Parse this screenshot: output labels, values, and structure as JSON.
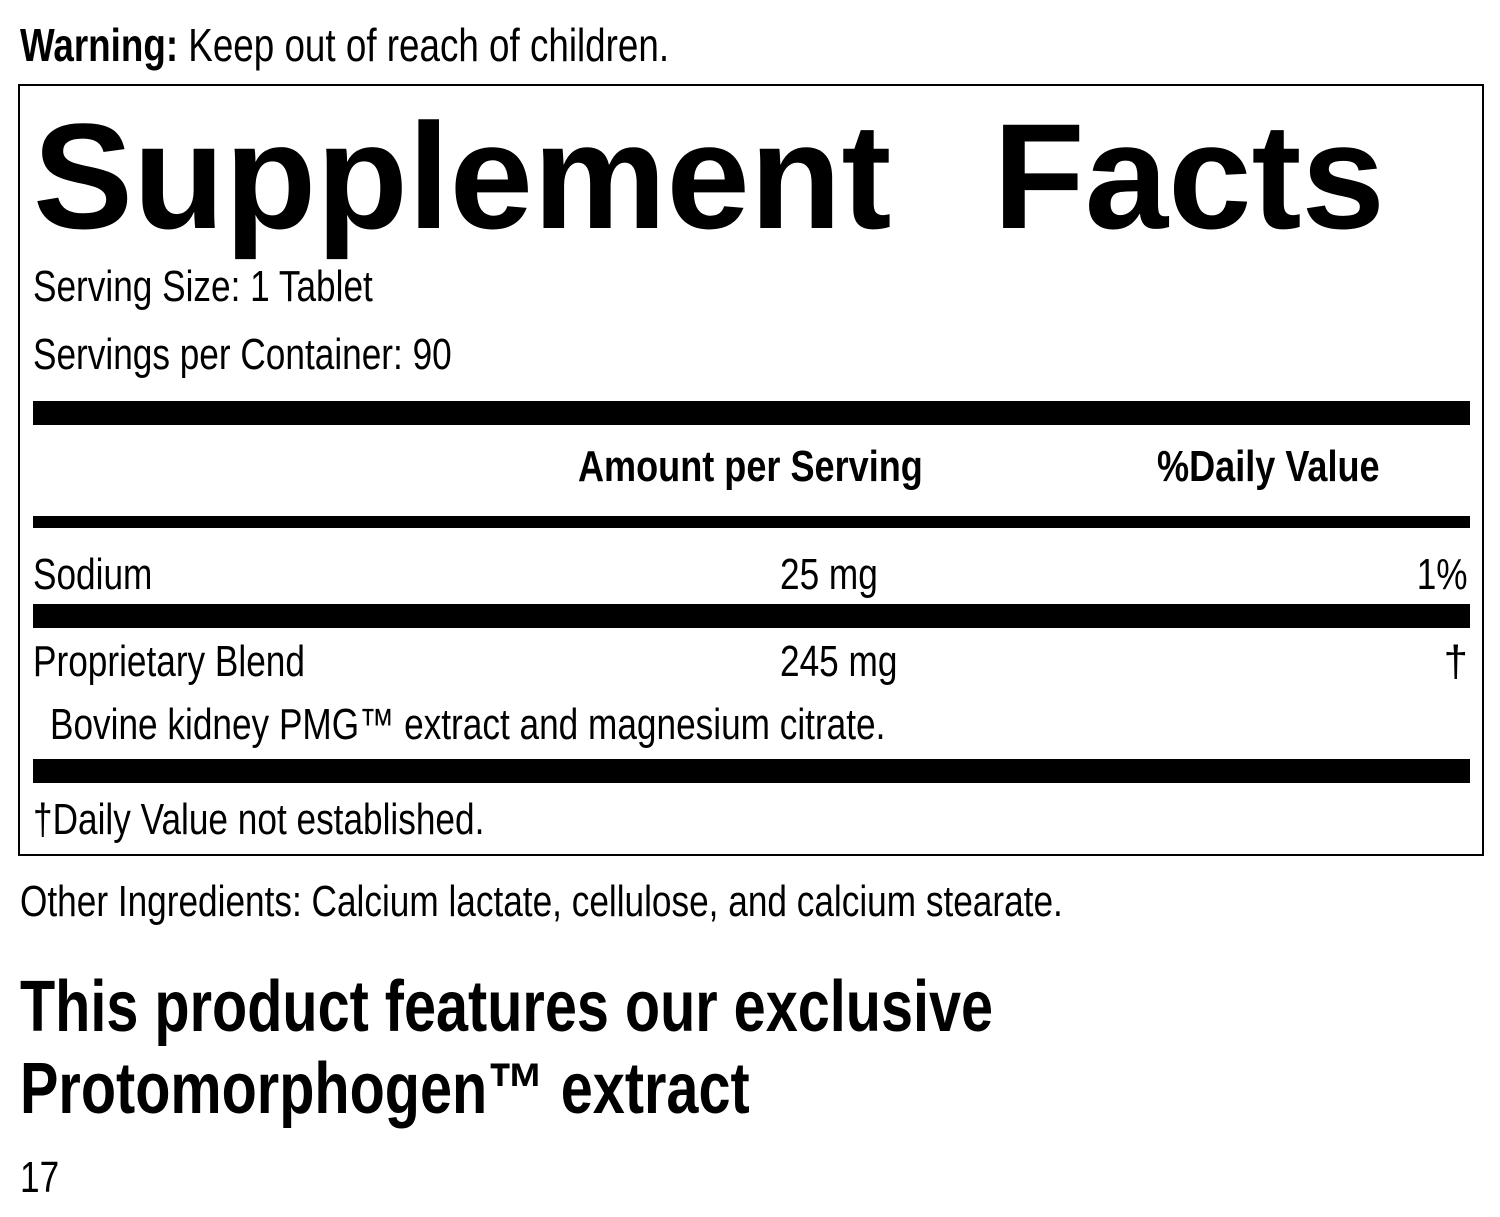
{
  "warning": {
    "label": "Warning:",
    "text": " Keep out of reach of children."
  },
  "facts": {
    "title": "Supplement Facts",
    "serving_size": "Serving Size: 1 Tablet",
    "servings_per_container": "Servings per Container: 90",
    "headers": {
      "amount": "Amount per Serving",
      "daily_value": "%Daily Value"
    },
    "rows": [
      {
        "name": "Sodium",
        "amount": "25 mg",
        "dv": "1%"
      },
      {
        "name": "Proprietary Blend",
        "amount": "245 mg",
        "dv": "†",
        "detail": "Bovine kidney PMG™ extract and magnesium citrate."
      }
    ],
    "footnote": "†Daily Value not established."
  },
  "other_ingredients": "Other Ingredients: Calcium lactate, cellulose, and calcium stearate.",
  "feature": {
    "line1": "This product features our exclusive",
    "line2": "Protomorphogen™ extract"
  },
  "page_number": "17"
}
